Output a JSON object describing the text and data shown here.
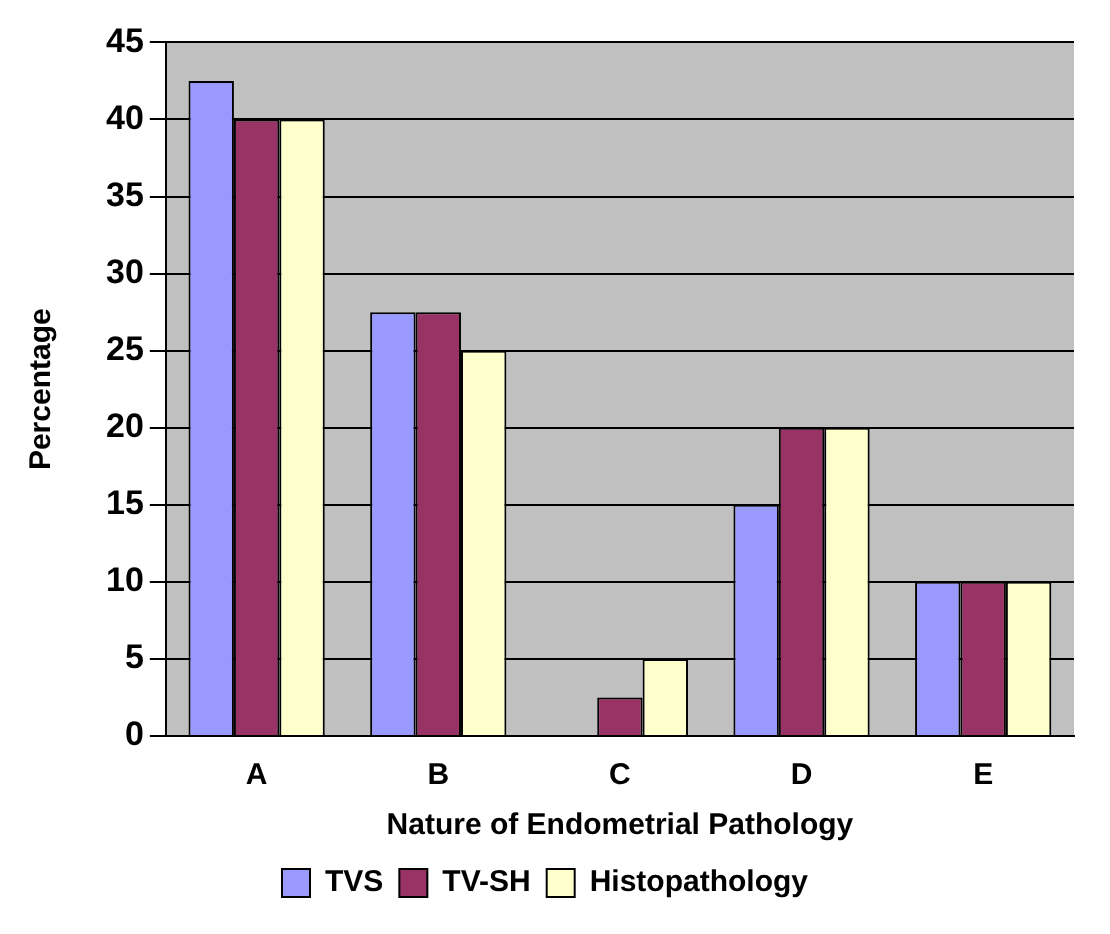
{
  "chart_data": {
    "type": "bar",
    "xlabel": "Nature of Endometrial Pathology",
    "ylabel": "Percentage",
    "categories": [
      "A",
      "B",
      "C",
      "D",
      "E"
    ],
    "series": [
      {
        "name": "TVS",
        "color": "#9999ff",
        "values": [
          42.5,
          27.5,
          0,
          15,
          10
        ]
      },
      {
        "name": "TV-SH",
        "color": "#993366",
        "values": [
          40,
          27.5,
          2.5,
          20,
          10
        ]
      },
      {
        "name": "Histopathology",
        "color": "#ffffcc",
        "values": [
          40,
          25,
          5,
          20,
          10
        ]
      }
    ],
    "ylim": [
      0,
      45
    ],
    "yticks": [
      0,
      5,
      10,
      15,
      20,
      25,
      30,
      35,
      40,
      45
    ],
    "grid": "y",
    "legend": "bottom"
  }
}
